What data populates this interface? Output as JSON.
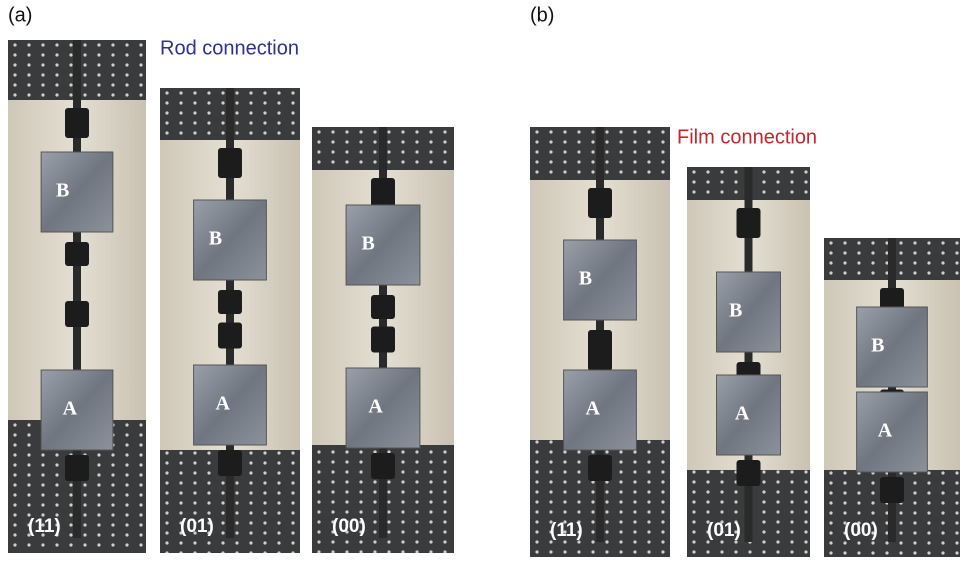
{
  "panels": [
    {
      "title": "(a)",
      "caption": "Rod connection",
      "photos": [
        {
          "label": "(11)",
          "upper": "B",
          "lower": "A"
        },
        {
          "label": "(01)",
          "upper": "B",
          "lower": "A"
        },
        {
          "label": "(00)",
          "upper": "B",
          "lower": "A"
        }
      ]
    },
    {
      "title": "(b)",
      "caption": "Film connection",
      "photos": [
        {
          "label": "(11)",
          "upper": "B",
          "lower": "A"
        },
        {
          "label": "(01)",
          "upper": "B",
          "lower": "A"
        },
        {
          "label": "(00)",
          "upper": "B",
          "lower": "A"
        }
      ]
    }
  ]
}
